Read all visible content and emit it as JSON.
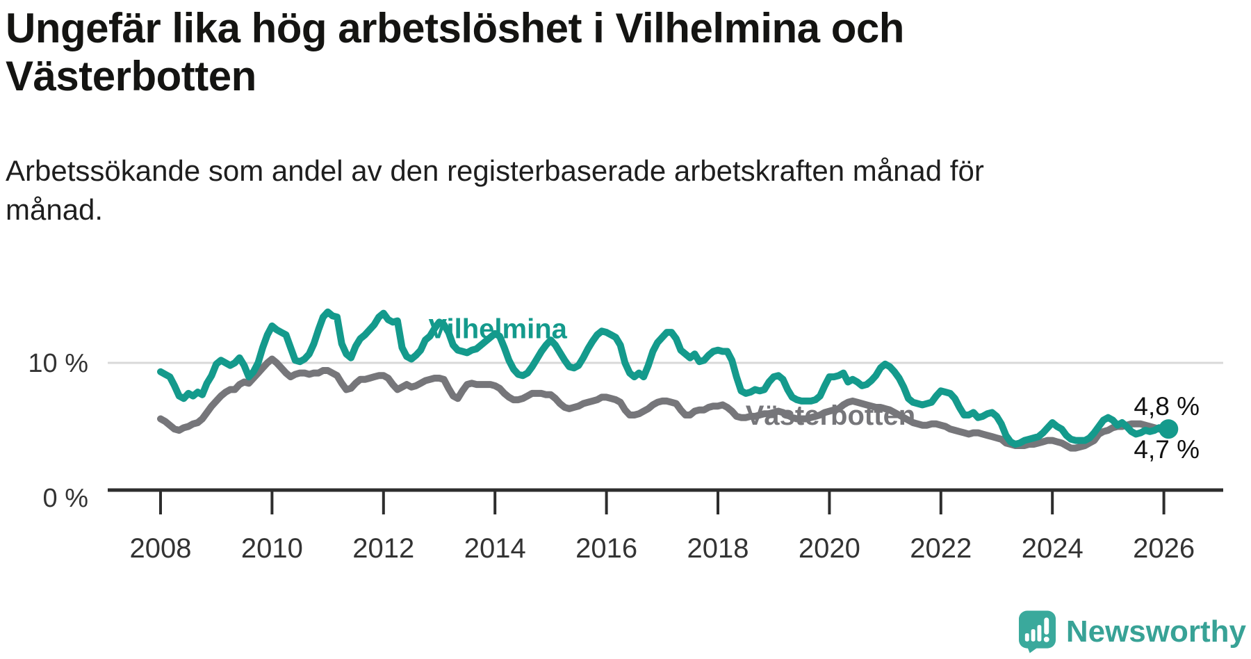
{
  "header": {
    "title_line1": "Ungefär lika hög arbetslöshet i Vilhelmina och",
    "title_line2": "Västerbotten",
    "subtitle": "Arbetssökande som andel av den registerbaserade arbetskraften månad för månad."
  },
  "footer": {
    "brand": "Newsworthy",
    "logo_icon": "bar-chart-speech-bubble",
    "logo_color": "#3aa99c"
  },
  "colors": {
    "vilhelmina": "#149a8c",
    "vasterbotten": "#76767a",
    "gridline": "#d9d9d9",
    "axis": "#2d2d2d",
    "tick_label": "#333333",
    "end_label": "#111111"
  },
  "chart_data": {
    "type": "line",
    "title": "Ungefär lika hög arbetslöshet i Vilhelmina och Västerbotten",
    "subtitle": "Arbetssökande som andel av den registerbaserade arbetskraften månad för månad.",
    "x_start": 2008.0,
    "x_step": 0.0833333,
    "x_unit": "month",
    "ylim": [
      0,
      17.8
    ],
    "grid": "y-10-only",
    "legend_position": "inline-labels",
    "x_ticks": [
      2008,
      2010,
      2012,
      2014,
      2016,
      2018,
      2020,
      2022,
      2024,
      2026
    ],
    "y_ticks": [
      {
        "value": 10,
        "label": "10 %"
      },
      {
        "value": 0,
        "label": "0 %"
      }
    ],
    "series_labels": [
      {
        "series": "Vilhelmina",
        "text": "Vilhelmina",
        "x": 2014.05,
        "y": 12.7
      },
      {
        "series": "Västerbotten",
        "text": "Västerbotten",
        "x": 2020.02,
        "y": 5.9
      }
    ],
    "end_labels": [
      {
        "series": "Vilhelmina",
        "text": "4,8 %",
        "value": 4.8
      },
      {
        "series": "Västerbotten",
        "text": "4,7 %",
        "value": 4.7
      }
    ],
    "series": [
      {
        "name": "Vilhelmina",
        "color": "#149a8c",
        "end_dot": true,
        "values": [
          9.3,
          9.1,
          8.9,
          8.2,
          7.4,
          7.2,
          7.6,
          7.4,
          7.7,
          7.5,
          8.4,
          9.0,
          9.9,
          10.2,
          10.0,
          9.8,
          10.0,
          10.4,
          9.8,
          8.9,
          9.3,
          10.0,
          11.2,
          12.2,
          12.9,
          12.6,
          12.4,
          12.2,
          11.2,
          10.2,
          10.1,
          10.3,
          10.7,
          11.5,
          12.6,
          13.6,
          14.0,
          13.7,
          13.6,
          11.5,
          10.7,
          10.4,
          11.3,
          11.9,
          12.2,
          12.6,
          13.0,
          13.6,
          13.9,
          13.4,
          13.2,
          13.3,
          11.2,
          10.5,
          10.3,
          10.6,
          11.0,
          11.8,
          12.1,
          12.7,
          13.2,
          13.0,
          12.4,
          11.4,
          11.0,
          10.9,
          10.8,
          11.0,
          11.1,
          11.4,
          11.7,
          12.0,
          12.3,
          12.1,
          11.2,
          10.2,
          9.5,
          9.1,
          9.0,
          9.2,
          9.7,
          10.3,
          10.9,
          11.4,
          11.8,
          11.4,
          10.8,
          10.2,
          9.7,
          9.6,
          9.8,
          10.4,
          11.1,
          11.7,
          12.2,
          12.5,
          12.4,
          12.2,
          12.0,
          11.4,
          10.0,
          9.2,
          8.9,
          9.2,
          8.9,
          9.8,
          10.9,
          11.6,
          12.0,
          12.4,
          12.4,
          11.9,
          11.0,
          10.7,
          10.4,
          10.7,
          10.1,
          10.2,
          10.6,
          10.9,
          11.0,
          10.9,
          10.9,
          10.2,
          8.9,
          7.8,
          7.6,
          7.7,
          7.9,
          7.8,
          7.9,
          8.5,
          8.9,
          9.0,
          8.7,
          7.9,
          7.3,
          7.1,
          7.0,
          7.0,
          7.0,
          7.1,
          7.4,
          8.2,
          8.9,
          8.9,
          9.0,
          9.2,
          8.5,
          8.7,
          8.5,
          8.2,
          8.3,
          8.6,
          9.0,
          9.6,
          9.9,
          9.7,
          9.3,
          8.8,
          8.1,
          7.2,
          6.9,
          6.8,
          6.7,
          6.8,
          6.9,
          7.4,
          7.8,
          7.7,
          7.6,
          7.2,
          6.5,
          5.9,
          5.9,
          6.1,
          5.7,
          5.8,
          6.0,
          6.1,
          5.8,
          5.2,
          4.3,
          3.8,
          3.6,
          3.7,
          3.9,
          4.0,
          4.1,
          4.2,
          4.5,
          4.9,
          5.3,
          5.0,
          4.8,
          4.3,
          4.0,
          3.9,
          3.9,
          3.9,
          4.1,
          4.5,
          5.0,
          5.5,
          5.7,
          5.5,
          5.1,
          5.3,
          5.0,
          4.6,
          4.4,
          4.5,
          4.7,
          4.6,
          4.7,
          4.9,
          4.8,
          4.8
        ]
      },
      {
        "name": "Västerbotten",
        "color": "#76767a",
        "end_dot": false,
        "values": [
          5.6,
          5.4,
          5.1,
          4.8,
          4.7,
          4.9,
          5.0,
          5.2,
          5.3,
          5.6,
          6.1,
          6.6,
          7.0,
          7.4,
          7.7,
          7.9,
          7.9,
          8.3,
          8.5,
          8.4,
          8.8,
          9.2,
          9.6,
          10.0,
          10.3,
          10.0,
          9.6,
          9.2,
          8.9,
          9.1,
          9.2,
          9.2,
          9.1,
          9.2,
          9.2,
          9.4,
          9.4,
          9.2,
          9.0,
          8.4,
          7.9,
          8.0,
          8.4,
          8.7,
          8.7,
          8.8,
          8.9,
          9.0,
          9.0,
          8.8,
          8.3,
          7.9,
          8.1,
          8.3,
          8.1,
          8.2,
          8.4,
          8.6,
          8.7,
          8.8,
          8.8,
          8.7,
          8.0,
          7.4,
          7.2,
          7.8,
          8.3,
          8.4,
          8.3,
          8.3,
          8.3,
          8.3,
          8.2,
          8.0,
          7.6,
          7.3,
          7.1,
          7.1,
          7.2,
          7.4,
          7.6,
          7.6,
          7.6,
          7.5,
          7.5,
          7.2,
          6.8,
          6.5,
          6.4,
          6.5,
          6.6,
          6.8,
          6.9,
          7.0,
          7.1,
          7.3,
          7.3,
          7.2,
          7.1,
          6.9,
          6.3,
          5.9,
          5.9,
          6.0,
          6.2,
          6.4,
          6.7,
          6.9,
          7.0,
          7.0,
          6.9,
          6.8,
          6.3,
          5.9,
          5.9,
          6.2,
          6.3,
          6.3,
          6.5,
          6.6,
          6.6,
          6.7,
          6.5,
          6.2,
          5.8,
          5.7,
          5.7,
          5.8,
          5.8,
          5.9,
          6.0,
          6.0,
          6.1,
          6.2,
          6.1,
          5.9,
          5.7,
          5.6,
          5.6,
          5.6,
          5.7,
          5.8,
          5.9,
          6.1,
          6.2,
          6.3,
          6.4,
          6.7,
          6.9,
          7.0,
          6.9,
          6.8,
          6.7,
          6.6,
          6.5,
          6.5,
          6.4,
          6.3,
          6.1,
          5.9,
          5.7,
          5.5,
          5.3,
          5.2,
          5.1,
          5.1,
          5.2,
          5.2,
          5.1,
          5.0,
          4.8,
          4.7,
          4.6,
          4.5,
          4.4,
          4.5,
          4.5,
          4.4,
          4.3,
          4.2,
          4.1,
          4.0,
          3.7,
          3.6,
          3.5,
          3.5,
          3.5,
          3.6,
          3.6,
          3.7,
          3.8,
          3.9,
          3.9,
          3.8,
          3.7,
          3.5,
          3.3,
          3.3,
          3.4,
          3.5,
          3.7,
          3.9,
          4.4,
          4.6,
          4.7,
          4.9,
          5.0,
          5.0,
          5.1,
          5.2,
          5.2,
          5.2,
          5.1,
          5.0,
          4.9,
          4.8,
          4.7,
          4.7
        ]
      }
    ]
  }
}
